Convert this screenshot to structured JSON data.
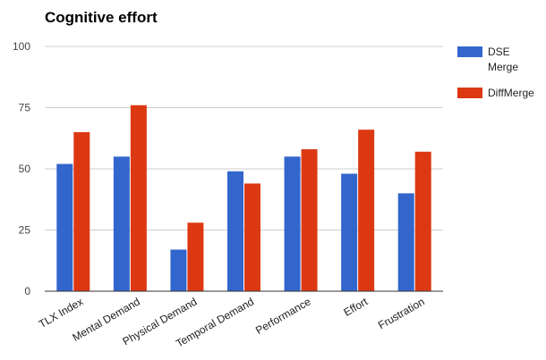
{
  "chart_data": {
    "type": "bar",
    "title": "Cognitive effort",
    "xlabel": "",
    "ylabel": "",
    "categories": [
      "TLX Index",
      "Mental Demand",
      "Physical Demand",
      "Temporal Demand",
      "Performance",
      "Effort",
      "Frustration"
    ],
    "series": [
      {
        "name": "DSE Merge",
        "name_lines": [
          "DSE",
          "Merge"
        ],
        "color": "#3366cc",
        "values": [
          52,
          55,
          17,
          49,
          55,
          48,
          40
        ]
      },
      {
        "name": "DiffMerge",
        "name_lines": [
          "DiffMerge"
        ],
        "color": "#dc3912",
        "values": [
          65,
          76,
          28,
          44,
          58,
          66,
          57
        ]
      }
    ],
    "ylim": [
      0,
      100
    ],
    "yticks": [
      0,
      25,
      50,
      75,
      100
    ],
    "grid": true,
    "legend_position": "right"
  }
}
